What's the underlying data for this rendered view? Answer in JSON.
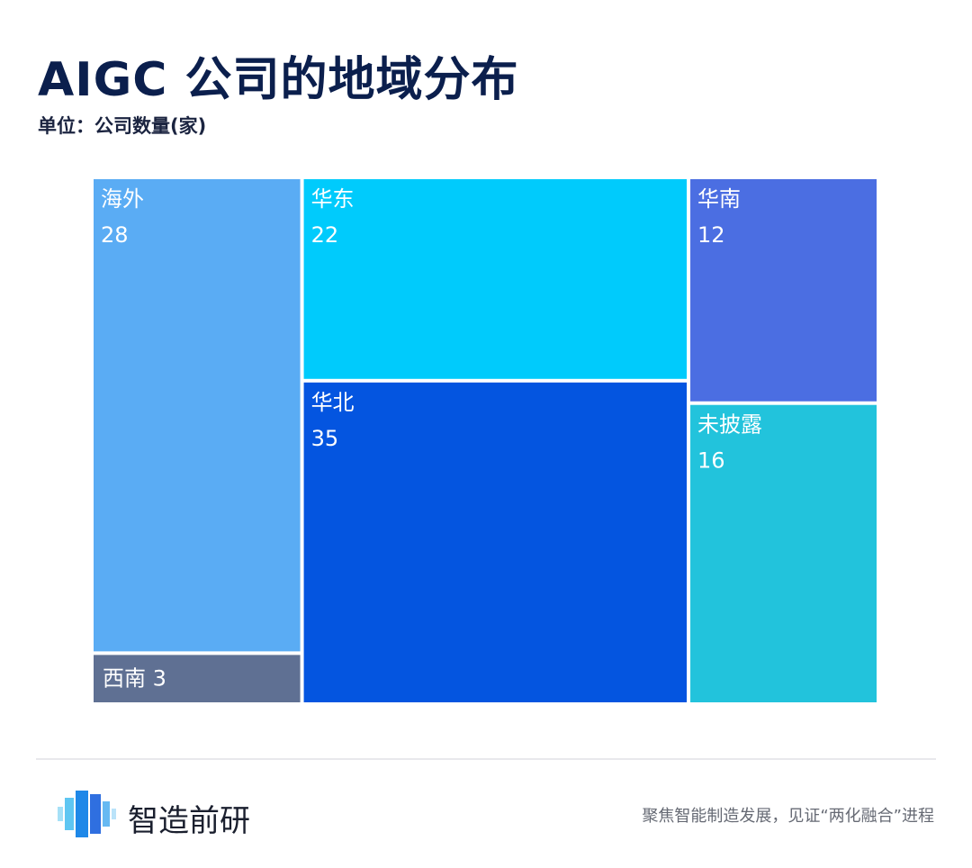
{
  "header": {
    "title": "AIGC 公司的地域分布",
    "subtitle": "单位：公司数量(家)"
  },
  "chart_data": {
    "type": "treemap",
    "title": "AIGC 公司的地域分布",
    "unit": "单位：公司数量(家)",
    "items": [
      {
        "name": "海外",
        "value": 28,
        "color": "#5aacf4"
      },
      {
        "name": "西南",
        "value": 3,
        "color": "#5f7093"
      },
      {
        "name": "华东",
        "value": 22,
        "color": "#00cbfc"
      },
      {
        "name": "华北",
        "value": 35,
        "color": "#0455e0"
      },
      {
        "name": "华南",
        "value": 12,
        "color": "#4b6ee2"
      },
      {
        "name": "未披露",
        "value": 16,
        "color": "#22c3dc"
      }
    ]
  },
  "footer": {
    "brand_name": "智造前研",
    "slogan": "聚焦智能制造发展，见证“两化融合”进程",
    "logo_icon": "brand-logo-icon"
  }
}
